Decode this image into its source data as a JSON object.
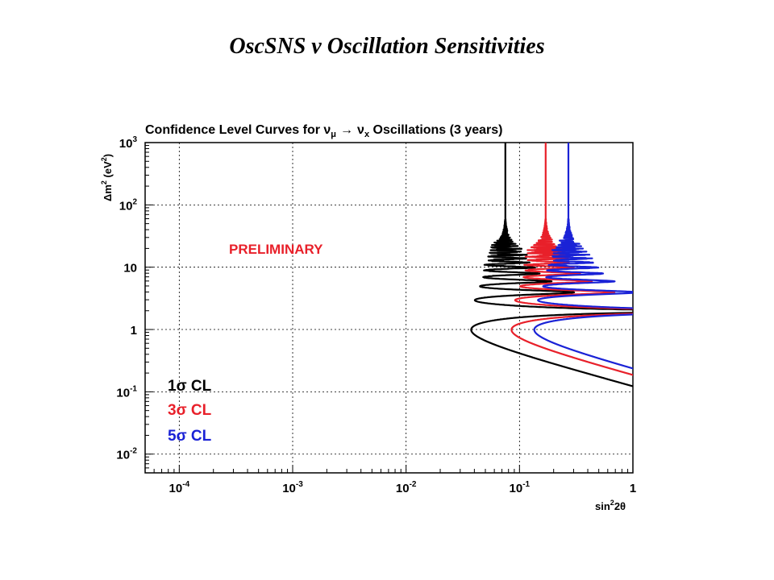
{
  "slide_title": "OscSNS  ν Oscillation Sensitivities",
  "chart_data": {
    "type": "line",
    "title": "Confidence Level Curves for ν_μ → ν_x Oscillations (3 years)",
    "title_parts": {
      "prefix": "Confidence Level Curves for ",
      "nu": "ν",
      "sub_mu": "μ",
      "arrow": "→",
      "sub_x": "x",
      "suffix": " Oscillations (3 years)"
    },
    "xlabel": "sin²2θ",
    "xlabel_parts": {
      "base": "sin",
      "exp": "2",
      "rest": "2θ"
    },
    "ylabel": "Δm² (eV²)",
    "ylabel_parts": {
      "delta": "Δm",
      "exp": "2",
      "mid": " (eV",
      "exp2": "2",
      "end": ")"
    },
    "x_scale": "log",
    "y_scale": "log",
    "xlim": [
      5e-05,
      1
    ],
    "ylim": [
      0.005,
      1000
    ],
    "grid": true,
    "x_ticks": [
      {
        "value": 0.0001,
        "base": "10",
        "exp": "-4"
      },
      {
        "value": 0.001,
        "base": "10",
        "exp": "-3"
      },
      {
        "value": 0.01,
        "base": "10",
        "exp": "-2"
      },
      {
        "value": 0.1,
        "base": "10",
        "exp": "-1"
      },
      {
        "value": 1,
        "base": "1",
        "exp": ""
      }
    ],
    "y_ticks": [
      {
        "value": 0.01,
        "base": "10",
        "exp": "-2"
      },
      {
        "value": 0.1,
        "base": "10",
        "exp": "-1"
      },
      {
        "value": 1,
        "base": "1",
        "exp": ""
      },
      {
        "value": 10,
        "base": "10",
        "exp": ""
      },
      {
        "value": 100,
        "base": "10",
        "exp": "2"
      },
      {
        "value": 1000,
        "base": "10",
        "exp": "3"
      }
    ],
    "annotation": "PRELIMINARY",
    "annotation_color": "#e8202a",
    "legend_position": "bottom-left",
    "series": [
      {
        "name": "1σ CL",
        "num": "1",
        "sigma": "σ",
        "cl": " CL",
        "color": "#000000",
        "asymptote_sin2": 0.075,
        "min_sin2": 0.042,
        "min_dm2": 0.6
      },
      {
        "name": "3σ CL",
        "num": "3",
        "sigma": "σ",
        "cl": " CL",
        "color": "#e8202a",
        "asymptote_sin2": 0.17,
        "min_sin2": 0.1,
        "min_dm2": 0.6
      },
      {
        "name": "5σ CL",
        "num": "5",
        "sigma": "σ",
        "cl": " CL",
        "color": "#1a22d6",
        "asymptote_sin2": 0.27,
        "min_sin2": 0.16,
        "min_dm2": 0.6
      }
    ]
  }
}
